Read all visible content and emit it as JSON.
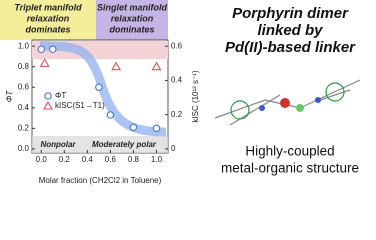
{
  "chart_data": {
    "type": "scatter",
    "x_label": "Molar fraction (CH2Cl2 in Toluene)",
    "y_label": "ΦT",
    "y2_label": "kISC (10¹² s⁻¹)",
    "xlim": [
      -0.08,
      1.1
    ],
    "xticks": [
      {
        "value": 0,
        "label": "0.0"
      },
      0.2,
      0.4,
      0.6,
      0.8,
      {
        "value": 1,
        "label": "1.0"
      }
    ],
    "ylim": [
      -0.04,
      1.06
    ],
    "yticks": [
      {
        "value": 0,
        "label": "0.0"
      },
      0.2,
      0.4,
      0.6,
      0.8,
      {
        "value": 1,
        "label": "1.0"
      }
    ],
    "y2lim": [
      -0.024,
      0.636
    ],
    "y2ticks": [
      0,
      0.2,
      0.4,
      0.6
    ],
    "series": [
      {
        "name": "ΦT",
        "color": "#4a7fd4",
        "marker": "circle",
        "x": [
          0,
          0.1,
          0.5,
          0.6,
          0.8,
          1.0
        ],
        "values": [
          0.97,
          0.97,
          0.6,
          0.33,
          0.21,
          0.2
        ]
      },
      {
        "name": "kISC(S1→T1)",
        "color": "#e0505a",
        "marker": "triangle",
        "axis": "y2",
        "x": [
          0.03,
          0.65,
          1.0
        ],
        "values": [
          0.5,
          0.48,
          0.48
        ]
      }
    ],
    "region_labels": {
      "left": [
        "Triplet manifold",
        "relaxation",
        "dominates"
      ],
      "right": [
        "Singlet manifold",
        "relaxation",
        "dominates"
      ]
    },
    "bottom_labels": [
      "Nonpolar",
      "Moderately polar"
    ],
    "side_title": [
      "Porphyrin dimer",
      "linked by",
      "Pd(II)-based linker"
    ],
    "side_caption": [
      "Highly-coupled",
      "metal-organic structure"
    ]
  }
}
